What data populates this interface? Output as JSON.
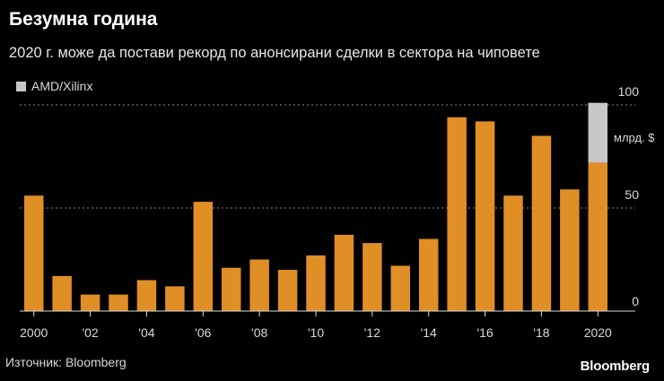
{
  "header": {
    "title": "Безумна година",
    "subtitle": "2020 г. може да постави рекорд по анонсирани сделки в сектора на чиповете"
  },
  "legend": {
    "label": "AMD/Xilinx"
  },
  "footer": {
    "source": "Източник: Bloomberg",
    "logo": "Bloomberg"
  },
  "colors": {
    "background": "#000000",
    "bar": "#e08e26",
    "highlight": "#c8c8c8",
    "axis": "#d9d9d9",
    "grid": "#8a8a8a"
  },
  "chart_data": {
    "type": "bar",
    "stacked": true,
    "categories": [
      "2000",
      "2001",
      "2002",
      "2003",
      "2004",
      "2005",
      "2006",
      "2007",
      "2008",
      "2009",
      "2010",
      "2011",
      "2012",
      "2013",
      "2014",
      "2015",
      "2016",
      "2017",
      "2018",
      "2019",
      "2020"
    ],
    "tick_labels": [
      "2000",
      "'02",
      "'04",
      "'06",
      "'08",
      "'10",
      "'12",
      "'14",
      "'16",
      "'18",
      "2020"
    ],
    "tick_label_positions": [
      "2000",
      "2002",
      "2004",
      "2006",
      "2008",
      "2010",
      "2012",
      "2014",
      "2016",
      "2018",
      "2020"
    ],
    "series": [
      {
        "name": "",
        "values": [
          56,
          17,
          8,
          8,
          15,
          12,
          53,
          21,
          25,
          20,
          27,
          37,
          33,
          22,
          35,
          94,
          92,
          56,
          85,
          59,
          72
        ]
      },
      {
        "name": "AMD/Xilinx",
        "values": [
          0,
          0,
          0,
          0,
          0,
          0,
          0,
          0,
          0,
          0,
          0,
          0,
          0,
          0,
          0,
          0,
          0,
          0,
          0,
          0,
          29
        ]
      }
    ],
    "yticks": [
      0,
      50,
      100
    ],
    "ylim": [
      0,
      100
    ],
    "yunit": "млрд. $",
    "grid": true,
    "axis_side": "right"
  }
}
